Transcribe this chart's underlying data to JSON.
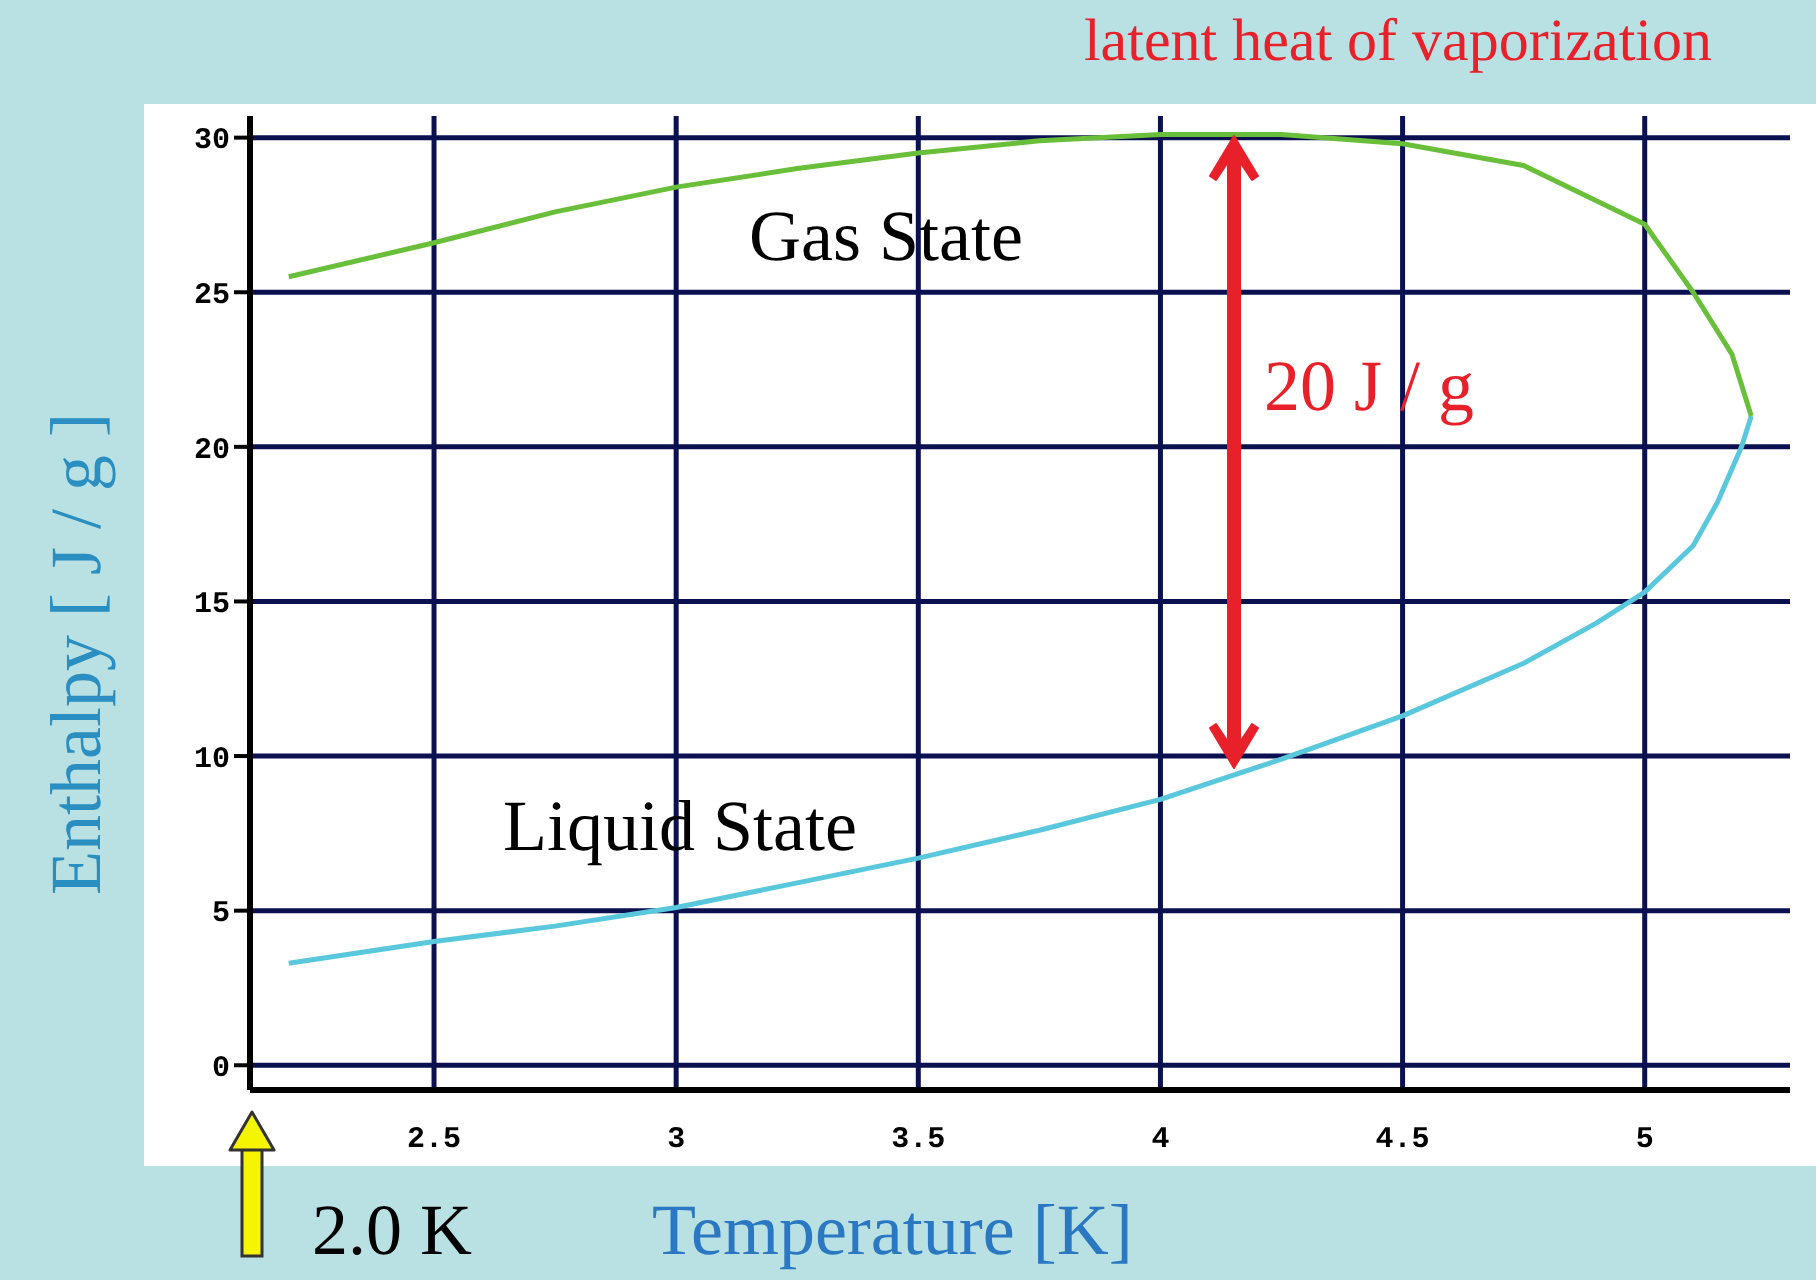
{
  "chart_data": {
    "type": "line",
    "title": "latent heat of vaporization",
    "xlabel": "Temperature [K]",
    "ylabel": "Enthalpy [ J / g ]",
    "xlim": [
      2.12,
      5.3
    ],
    "ylim": [
      -0.8,
      30.7
    ],
    "xticks": [
      2.5,
      3,
      3.5,
      4,
      4.5,
      5
    ],
    "yticks": [
      0,
      5,
      10,
      15,
      20,
      25,
      30
    ],
    "grid": true,
    "marker": "none",
    "line_style": "solid",
    "series": [
      {
        "color": "#5ac8dc",
        "x": [
          2.2,
          2.5,
          2.75,
          3.0,
          3.25,
          3.5,
          3.75,
          4.0,
          4.25,
          4.5,
          4.75,
          4.9,
          5.0,
          5.1,
          5.15,
          5.2,
          5.22
        ],
        "values": [
          3.3,
          4.0,
          4.5,
          5.1,
          5.9,
          6.7,
          7.6,
          8.6,
          9.9,
          11.3,
          13.0,
          14.3,
          15.3,
          16.8,
          18.2,
          20.0,
          21.0
        ]
      },
      {
        "color": "#6abf3a",
        "x": [
          2.2,
          2.5,
          2.75,
          3.0,
          3.25,
          3.5,
          3.75,
          4.0,
          4.25,
          4.5,
          4.75,
          5.0,
          5.1,
          5.18,
          5.22
        ],
        "values": [
          25.5,
          26.6,
          27.6,
          28.4,
          29.0,
          29.5,
          29.9,
          30.1,
          30.1,
          29.8,
          29.1,
          27.2,
          25.0,
          23.0,
          21.0
        ]
      }
    ],
    "annotations": [
      "20 J / g",
      "Gas State",
      "Liquid State",
      "2.0 K"
    ]
  }
}
